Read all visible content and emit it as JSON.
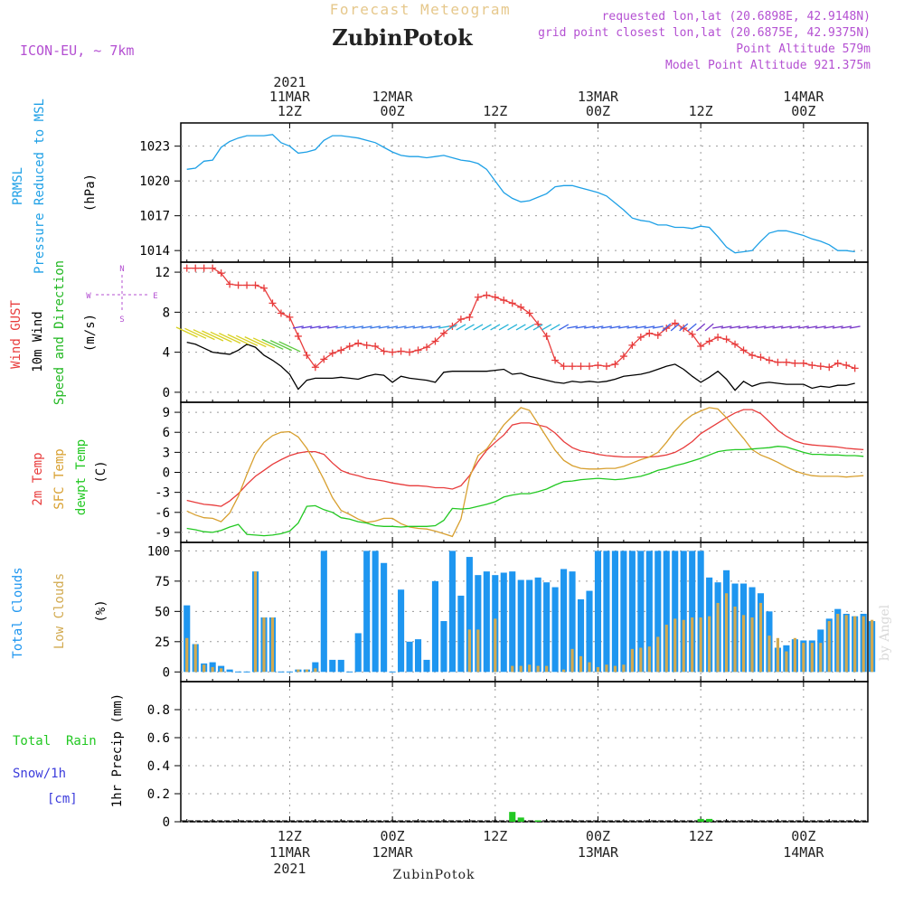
{
  "header": {
    "app_title": "Forecast Meteogram",
    "location": "ZubinPotok",
    "model": "ICON-EU, ~ 7km",
    "requested": "requested lon,lat (20.6898E, 42.9148N)",
    "closest": "grid point closest lon,lat (20.6875E, 42.9375N)",
    "point_altitude": "Point Altitude 579m",
    "model_altitude": "Model Point Altitude 921.375m",
    "footer_location": "ZubinPotok",
    "watermark": "by Angel"
  },
  "time_axis": {
    "top_labels": [
      {
        "x": 12,
        "lines": [
          "2021",
          "11MAR",
          "12Z"
        ]
      },
      {
        "x": 24,
        "lines": [
          "12MAR",
          "00Z"
        ]
      },
      {
        "x": 36,
        "lines": [
          "12Z"
        ]
      },
      {
        "x": 48,
        "lines": [
          "13MAR",
          "00Z"
        ]
      },
      {
        "x": 60,
        "lines": [
          "12Z"
        ]
      },
      {
        "x": 72,
        "lines": [
          "14MAR",
          "00Z"
        ]
      }
    ],
    "bottom_labels": [
      {
        "x": 12,
        "lines": [
          "12Z",
          "11MAR",
          "2021"
        ]
      },
      {
        "x": 24,
        "lines": [
          "00Z",
          "12MAR"
        ]
      },
      {
        "x": 36,
        "lines": [
          "12Z"
        ]
      },
      {
        "x": 48,
        "lines": [
          "00Z",
          "13MAR"
        ]
      },
      {
        "x": 60,
        "lines": [
          "12Z"
        ]
      },
      {
        "x": 72,
        "lines": [
          "00Z",
          "14MAR"
        ]
      }
    ]
  },
  "colors": {
    "pressure": "#1ea0e6",
    "gust": "#e83c3c",
    "wind": "#000000",
    "direction": "#22b822",
    "temp2m": "#e83c3c",
    "sfc": "#d8a030",
    "dew": "#22c822",
    "total_clouds": "#1e96f0",
    "low_clouds": "#d2aa50",
    "rain": "#22c822",
    "snow": "#3c3cdc",
    "compass": "#b450d2",
    "title": "#e6c88c",
    "meta": "#b450d2"
  },
  "chart_data": [
    {
      "type": "line",
      "panel": "pressure",
      "ylabel_lines": [
        "PRMSL",
        "Pressure Reduced to MSL"
      ],
      "unit": "(hPa)",
      "yticks": [
        1014,
        1017,
        1020,
        1023
      ],
      "ylim": [
        1013,
        1025
      ],
      "series": [
        {
          "values": [
            1021.0,
            1021.1,
            1021.7,
            1021.8,
            1022.9,
            1023.4,
            1023.7,
            1023.9,
            1023.9,
            1023.9,
            1024.0,
            1023.3,
            1023.0,
            1022.4,
            1022.5,
            1022.7,
            1023.5,
            1023.9,
            1023.9,
            1023.8,
            1023.7,
            1023.5,
            1023.3,
            1022.9,
            1022.5,
            1022.2,
            1022.1,
            1022.1,
            1022.0,
            1022.1,
            1022.2,
            1022.0,
            1021.8,
            1021.7,
            1021.5,
            1021.0,
            1020.0,
            1019.0,
            1018.5,
            1018.2,
            1018.3,
            1018.6,
            1018.9,
            1019.5,
            1019.6,
            1019.6,
            1019.4,
            1019.2,
            1019.0,
            1018.7,
            1018.1,
            1017.5,
            1016.8,
            1016.6,
            1016.5,
            1016.2,
            1016.2,
            1016.0,
            1016.0,
            1015.9,
            1016.1,
            1016.0,
            1015.2,
            1014.3,
            1013.8,
            1013.9,
            1014.0,
            1014.8,
            1015.5,
            1015.7,
            1015.7,
            1015.5,
            1015.3,
            1015.0,
            1014.8,
            1014.5,
            1014.0,
            1014.0,
            1013.9
          ]
        }
      ]
    },
    {
      "type": "line",
      "panel": "wind",
      "ylabel_lines": [
        "Wind GUST",
        "10m Wind",
        "Speed and Direction"
      ],
      "unit": "(m/s)",
      "yticks": [
        0,
        4,
        8,
        12
      ],
      "ylim": [
        -1,
        13
      ],
      "compass": {
        "north": "N",
        "south": "S",
        "west": "W",
        "east": "E"
      },
      "series": [
        {
          "name": "Wind GUST",
          "values": [
            12.4,
            12.4,
            12.4,
            12.4,
            11.9,
            10.8,
            10.7,
            10.7,
            10.7,
            10.4,
            8.9,
            7.9,
            7.5,
            5.6,
            3.7,
            2.5,
            3.3,
            3.9,
            4.2,
            4.6,
            4.9,
            4.7,
            4.6,
            4.1,
            4.0,
            4.1,
            4.0,
            4.2,
            4.5,
            5.1,
            5.9,
            6.6,
            7.3,
            7.5,
            9.5,
            9.7,
            9.5,
            9.2,
            8.9,
            8.5,
            7.9,
            6.8,
            5.6,
            3.2,
            2.6,
            2.6,
            2.6,
            2.6,
            2.7,
            2.6,
            2.8,
            3.6,
            4.7,
            5.5,
            5.9,
            5.7,
            6.4,
            6.9,
            6.4,
            5.8,
            4.6,
            5.1,
            5.5,
            5.3,
            4.8,
            4.2,
            3.7,
            3.5,
            3.2,
            3.0,
            3.0,
            2.9,
            2.9,
            2.7,
            2.6,
            2.5,
            2.9,
            2.7,
            2.4
          ]
        },
        {
          "name": "10m Wind",
          "values": [
            5.0,
            4.8,
            4.4,
            4.0,
            3.9,
            3.8,
            4.2,
            4.8,
            4.5,
            3.7,
            3.2,
            2.6,
            1.8,
            0.3,
            1.2,
            1.4,
            1.4,
            1.4,
            1.5,
            1.4,
            1.3,
            1.6,
            1.8,
            1.7,
            1.0,
            1.6,
            1.4,
            1.3,
            1.2,
            1.0,
            2.0,
            2.1,
            2.1,
            2.1,
            2.1,
            2.1,
            2.2,
            2.3,
            1.8,
            1.9,
            1.6,
            1.4,
            1.2,
            1.0,
            0.9,
            1.1,
            1.0,
            1.1,
            1.0,
            1.1,
            1.3,
            1.6,
            1.7,
            1.8,
            2.0,
            2.3,
            2.6,
            2.8,
            2.3,
            1.6,
            1.0,
            1.5,
            2.1,
            1.3,
            0.2,
            1.1,
            0.6,
            0.9,
            1.0,
            0.9,
            0.8,
            0.8,
            0.8,
            0.4,
            0.6,
            0.5,
            0.7,
            0.7,
            0.9
          ]
        }
      ]
    },
    {
      "type": "line",
      "panel": "temperature",
      "ylabel_lines": [
        "2m Temp",
        "SFC Temp",
        "dewpt Temp"
      ],
      "unit": "(C)",
      "yticks": [
        -9,
        -6,
        -3,
        0,
        3,
        6,
        9
      ],
      "ylim": [
        -10.5,
        10.5
      ],
      "series": [
        {
          "name": "2m Temp",
          "values": [
            -4.2,
            -4.5,
            -4.8,
            -4.9,
            -5.1,
            -4.3,
            -3.2,
            -1.8,
            -0.6,
            0.3,
            1.2,
            1.9,
            2.5,
            2.9,
            3.1,
            3.1,
            2.7,
            1.4,
            0.3,
            -0.2,
            -0.5,
            -0.9,
            -1.1,
            -1.3,
            -1.6,
            -1.8,
            -2.0,
            -2.0,
            -2.1,
            -2.3,
            -2.3,
            -2.5,
            -2.0,
            -0.5,
            1.6,
            3.3,
            4.5,
            5.6,
            7.1,
            7.4,
            7.4,
            7.1,
            6.8,
            5.9,
            4.6,
            3.7,
            3.2,
            3.0,
            2.7,
            2.5,
            2.4,
            2.3,
            2.3,
            2.3,
            2.3,
            2.4,
            2.6,
            3.0,
            3.7,
            4.6,
            5.8,
            6.6,
            7.4,
            8.2,
            8.9,
            9.4,
            9.4,
            8.8,
            7.6,
            6.3,
            5.4,
            4.7,
            4.3,
            4.1,
            4.0,
            3.9,
            3.8,
            3.6,
            3.5,
            3.4
          ]
        },
        {
          "name": "SFC Temp",
          "values": [
            -5.8,
            -6.4,
            -6.8,
            -6.9,
            -7.4,
            -6.1,
            -3.6,
            -0.3,
            2.7,
            4.5,
            5.5,
            6.0,
            6.1,
            5.3,
            3.6,
            1.4,
            -1.1,
            -3.8,
            -5.7,
            -6.3,
            -7.0,
            -7.5,
            -7.3,
            -6.9,
            -6.9,
            -7.7,
            -8.2,
            -8.4,
            -8.5,
            -8.8,
            -9.2,
            -9.6,
            -7.0,
            -0.8,
            2.5,
            3.5,
            5.3,
            7.1,
            8.4,
            9.7,
            9.3,
            7.3,
            5.3,
            3.3,
            1.8,
            1.0,
            0.6,
            0.5,
            0.5,
            0.6,
            0.6,
            0.9,
            1.4,
            1.9,
            2.3,
            3.0,
            4.5,
            6.2,
            7.6,
            8.6,
            9.2,
            9.7,
            9.5,
            8.2,
            6.6,
            5.1,
            3.4,
            2.6,
            2.1,
            1.5,
            0.8,
            0.2,
            -0.2,
            -0.5,
            -0.6,
            -0.6,
            -0.6,
            -0.7,
            -0.6,
            -0.5
          ]
        },
        {
          "name": "dewpt Temp",
          "values": [
            -8.4,
            -8.6,
            -8.9,
            -9.0,
            -8.7,
            -8.2,
            -7.8,
            -9.3,
            -9.4,
            -9.5,
            -9.4,
            -9.2,
            -8.8,
            -7.6,
            -5.1,
            -5.0,
            -5.6,
            -6.0,
            -6.8,
            -7.0,
            -7.4,
            -7.6,
            -8.0,
            -8.1,
            -8.1,
            -8.2,
            -8.1,
            -8.1,
            -8.1,
            -8.0,
            -7.2,
            -5.4,
            -5.5,
            -5.4,
            -5.1,
            -4.8,
            -4.4,
            -3.7,
            -3.4,
            -3.2,
            -3.2,
            -2.9,
            -2.5,
            -1.9,
            -1.4,
            -1.3,
            -1.1,
            -1.0,
            -0.9,
            -1.0,
            -1.1,
            -1.0,
            -0.8,
            -0.6,
            -0.2,
            0.3,
            0.6,
            1.0,
            1.3,
            1.7,
            2.1,
            2.6,
            3.1,
            3.3,
            3.4,
            3.4,
            3.5,
            3.6,
            3.7,
            3.9,
            3.8,
            3.4,
            3.0,
            2.7,
            2.7,
            2.6,
            2.6,
            2.5,
            2.5,
            2.4
          ]
        }
      ]
    },
    {
      "type": "bar",
      "panel": "clouds",
      "ylabel_lines": [
        "Total Clouds",
        "Low Clouds"
      ],
      "unit": "(%)",
      "yticks": [
        0,
        25,
        50,
        75,
        100
      ],
      "ylim": [
        -8,
        107
      ],
      "series": [
        {
          "name": "Total Clouds",
          "values": [
            55,
            23,
            7,
            8,
            5,
            2,
            0,
            0,
            83,
            45,
            45,
            0,
            0,
            2,
            2,
            8,
            100,
            10,
            10,
            0,
            32,
            100,
            100,
            90,
            0,
            68,
            25,
            27,
            10,
            75,
            42,
            100,
            63,
            95,
            80,
            83,
            80,
            82,
            83,
            76,
            76,
            78,
            74,
            70,
            85,
            83,
            60,
            67,
            100,
            100,
            100,
            100,
            100,
            100,
            100,
            100,
            100,
            100,
            100,
            100,
            100,
            78,
            74,
            84,
            73,
            73,
            70,
            65,
            50,
            20,
            22,
            27,
            26,
            26,
            35,
            44,
            52,
            48,
            46,
            48,
            42
          ]
        },
        {
          "name": "Low Clouds",
          "values": [
            28,
            23,
            6,
            4,
            3,
            0,
            0,
            0,
            83,
            45,
            45,
            0,
            0,
            2,
            2,
            3,
            0,
            0,
            0,
            0,
            0,
            0,
            0,
            0,
            0,
            0,
            0,
            0,
            0,
            0,
            0,
            0,
            0,
            35,
            35,
            0,
            44,
            0,
            5,
            5,
            6,
            5,
            5,
            0,
            2,
            19,
            13,
            8,
            4,
            6,
            5,
            6,
            19,
            20,
            21,
            29,
            39,
            44,
            43,
            45,
            45,
            46,
            57,
            65,
            54,
            47,
            45,
            57,
            30,
            28,
            17,
            28,
            24,
            24,
            24,
            42,
            48,
            47,
            46,
            46,
            43
          ]
        }
      ]
    },
    {
      "type": "bar",
      "panel": "precip",
      "ylabel_lines": [
        "1hr Precip (mm)"
      ],
      "legend_lines": [
        "Total  Rain",
        "Snow/1h",
        "[cm]"
      ],
      "yticks": [
        "0",
        "0.2",
        "0.4",
        "0.6",
        "0.8"
      ],
      "ylim": [
        0,
        1.0
      ],
      "series": [
        {
          "name": "Total Rain",
          "values": [
            0,
            0,
            0,
            0,
            0,
            0,
            0,
            0,
            0,
            0,
            0,
            0,
            0,
            0,
            0,
            0,
            0,
            0,
            0,
            0,
            0,
            0,
            0,
            0,
            0,
            0,
            0,
            0,
            0,
            0,
            0,
            0,
            0,
            0,
            0,
            0,
            0,
            0,
            0.07,
            0.03,
            0,
            0.01,
            0,
            0,
            0,
            0,
            0,
            0,
            0,
            0,
            0,
            0,
            0,
            0,
            0,
            0,
            0,
            0,
            0,
            0,
            0.02,
            0.02,
            0,
            0,
            0,
            0,
            0,
            0,
            0,
            0,
            0,
            0,
            0,
            0,
            0,
            0,
            0,
            0,
            0,
            0,
            0
          ]
        }
      ]
    }
  ]
}
